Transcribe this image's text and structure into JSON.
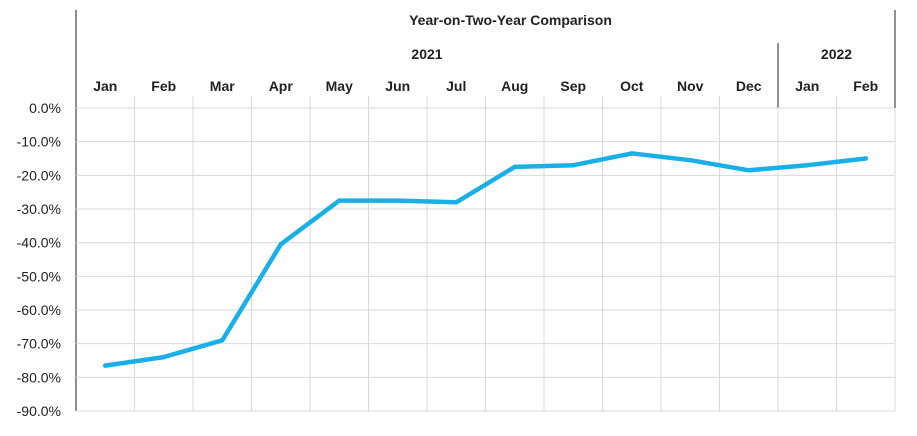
{
  "chart_data": {
    "type": "line",
    "title": "Year-on-Two-Year Comparison",
    "years": [
      {
        "label": "2021",
        "months": 12
      },
      {
        "label": "2022",
        "months": 2
      }
    ],
    "categories": [
      "Jan",
      "Feb",
      "Mar",
      "Apr",
      "May",
      "Jun",
      "Jul",
      "Aug",
      "Sep",
      "Oct",
      "Nov",
      "Dec",
      "Jan",
      "Feb"
    ],
    "series": [
      {
        "values": [
          -76.5,
          -74.0,
          -69.0,
          -40.5,
          -27.5,
          -27.5,
          -28.0,
          -17.5,
          -17.0,
          -13.5,
          -15.5,
          -18.5,
          -17.0,
          -15.0
        ],
        "color": "#1aafe6"
      }
    ],
    "ylim": [
      -90,
      0
    ],
    "yticks": [
      0,
      -10,
      -20,
      -30,
      -40,
      -50,
      -60,
      -70,
      -80,
      -90
    ],
    "ytick_labels": [
      "0.0%",
      "-10.0%",
      "-20.0%",
      "-30.0%",
      "-40.0%",
      "-50.0%",
      "-60.0%",
      "-70.0%",
      "-80.0%",
      "-90.0%"
    ],
    "grid": true,
    "legend": "none"
  }
}
